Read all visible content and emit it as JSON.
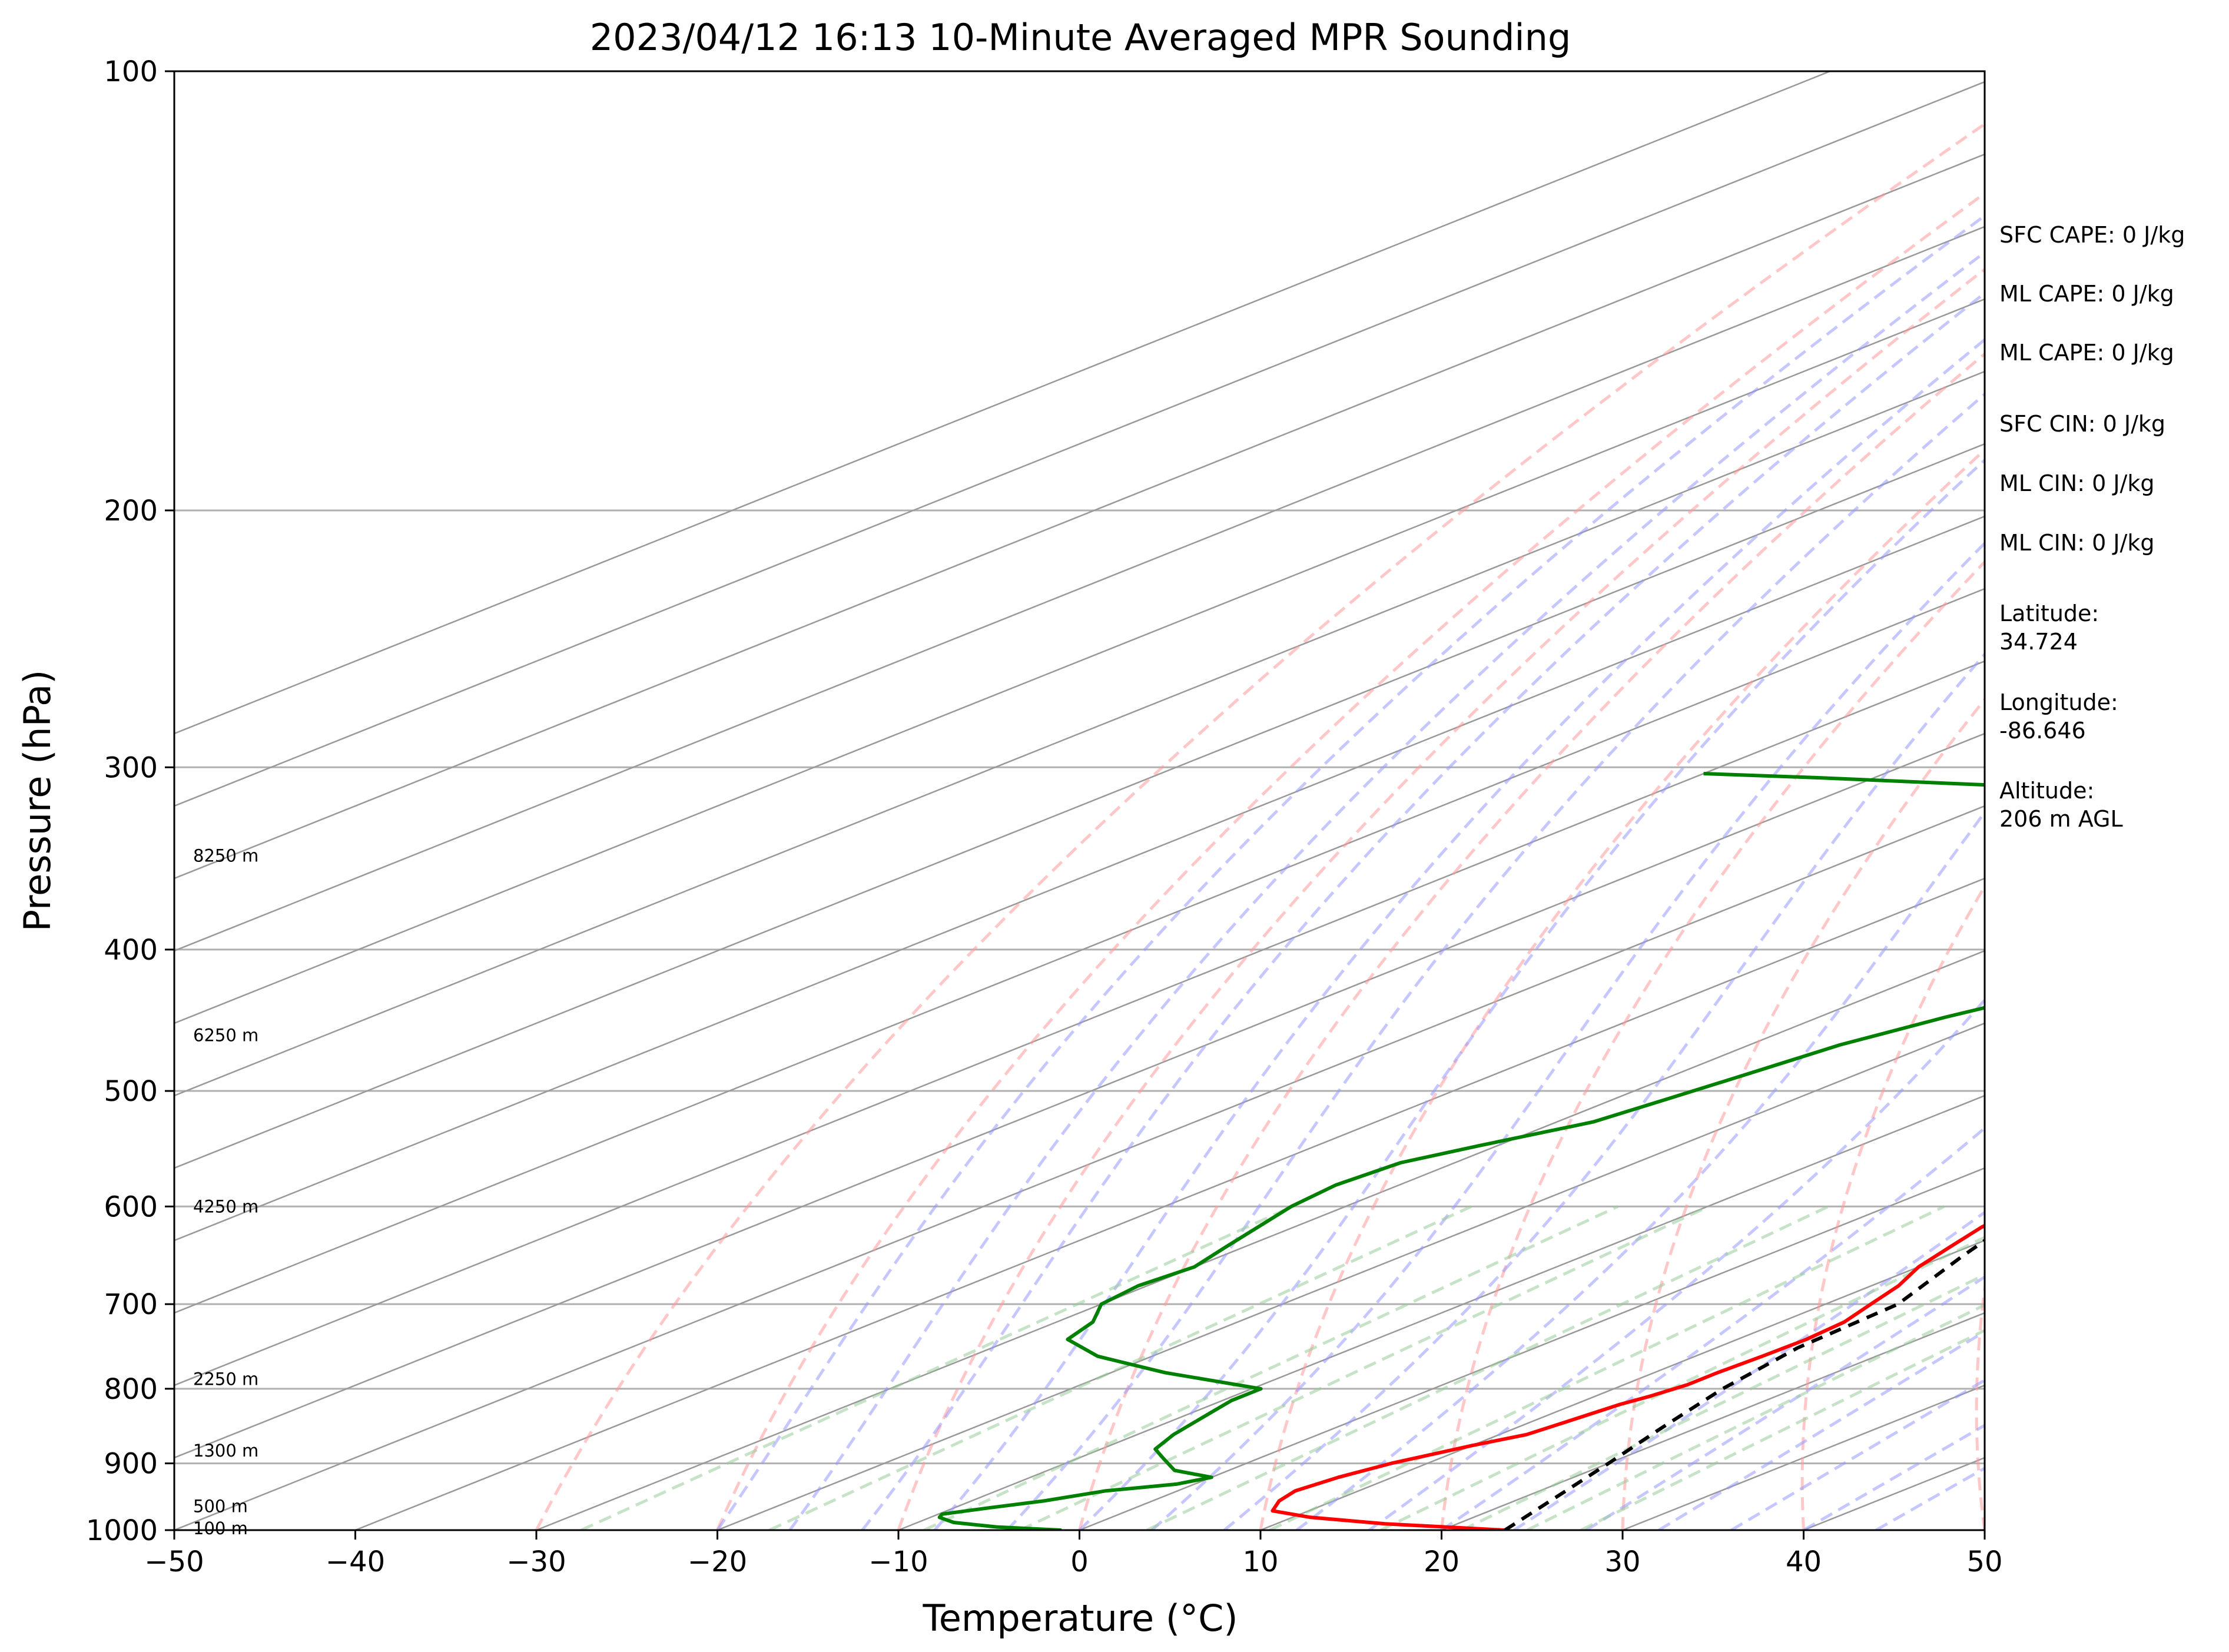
{
  "chart_data": {
    "type": "line",
    "title": "2023/04/12 16:13 10-Minute Averaged MPR Sounding",
    "xlabel": "Temperature (°C)",
    "ylabel": "Pressure (hPa)",
    "xlim": [
      -50,
      50
    ],
    "ylim": [
      1000,
      100
    ],
    "y_scale": "log",
    "skew": "skew-T",
    "grid": true,
    "x_ticks": [
      "−50",
      "−40",
      "−30",
      "−20",
      "−10",
      "0",
      "10",
      "20",
      "30",
      "40",
      "50"
    ],
    "y_ticks": [
      "100",
      "200",
      "300",
      "400",
      "500",
      "600",
      "700",
      "800",
      "900",
      "1000"
    ],
    "series": [
      {
        "role": "temperature",
        "color": "#ff0000",
        "points": [
          [
            1000,
            23.5
          ],
          [
            990,
            16
          ],
          [
            980,
            11
          ],
          [
            970,
            8
          ],
          [
            955,
            7
          ],
          [
            940,
            6.5
          ],
          [
            920,
            7
          ],
          [
            900,
            8
          ],
          [
            875,
            10
          ],
          [
            860,
            11.5
          ],
          [
            840,
            12
          ],
          [
            820,
            12.5
          ],
          [
            810,
            13
          ],
          [
            795,
            13.5
          ],
          [
            780,
            13.5
          ],
          [
            760,
            13.7
          ],
          [
            740,
            13.8
          ],
          [
            720,
            13.5
          ],
          [
            700,
            12.5
          ],
          [
            680,
            11.5
          ],
          [
            660,
            10
          ],
          [
            640,
            9
          ],
          [
            620,
            8
          ],
          [
            600,
            7.5
          ],
          [
            590,
            7
          ],
          [
            575,
            6
          ],
          [
            560,
            5.5
          ],
          [
            540,
            4
          ],
          [
            520,
            3
          ],
          [
            500,
            2
          ],
          [
            480,
            1
          ],
          [
            460,
            0.5
          ],
          [
            440,
            -1
          ],
          [
            420,
            -2.5
          ],
          [
            400,
            -3.5
          ],
          [
            385,
            -4
          ],
          [
            370,
            -4.8
          ],
          [
            355,
            -5.2
          ],
          [
            335,
            -6
          ],
          [
            320,
            -6.8
          ],
          [
            300,
            -7.5
          ],
          [
            285,
            -8.5
          ],
          [
            270,
            -9
          ]
        ]
      },
      {
        "role": "dewpoint",
        "color": "#008000",
        "points": [
          [
            1000,
            -1
          ],
          [
            995,
            -5
          ],
          [
            988,
            -8
          ],
          [
            980,
            -9.5
          ],
          [
            975,
            -9.8
          ],
          [
            965,
            -8
          ],
          [
            955,
            -6
          ],
          [
            940,
            -4
          ],
          [
            930,
            -1
          ],
          [
            920,
            0
          ],
          [
            910,
            -3
          ],
          [
            895,
            -5
          ],
          [
            880,
            -7
          ],
          [
            860,
            -8
          ],
          [
            830,
            -9
          ],
          [
            815,
            -9.5
          ],
          [
            800,
            -9.5
          ],
          [
            780,
            -17
          ],
          [
            760,
            -23
          ],
          [
            740,
            -27
          ],
          [
            720,
            -28
          ],
          [
            700,
            -30
          ],
          [
            680,
            -30.5
          ],
          [
            660,
            -30
          ],
          [
            640,
            -31
          ],
          [
            600,
            -33
          ],
          [
            580,
            -33.5
          ],
          [
            560,
            -33
          ],
          [
            545,
            -31
          ],
          [
            525,
            -28
          ],
          [
            505,
            -27
          ],
          [
            485,
            -26
          ],
          [
            465,
            -25
          ],
          [
            445,
            -23
          ],
          [
            430,
            -21
          ],
          [
            415,
            -20
          ],
          [
            400,
            -20
          ],
          [
            385,
            -24
          ],
          [
            370,
            -24
          ],
          [
            360,
            -26.5
          ],
          [
            350,
            -27
          ],
          [
            340,
            -27.5
          ],
          [
            330,
            -29
          ],
          [
            320,
            -33
          ],
          [
            315,
            -34
          ],
          [
            305,
            -63
          ],
          [
            303,
            -70
          ]
        ]
      },
      {
        "role": "parcel",
        "color": "#000000",
        "dashed": true,
        "points": [
          [
            1000,
            23.5
          ],
          [
            950,
            21.8
          ],
          [
            900,
            20
          ],
          [
            850,
            18
          ],
          [
            800,
            16
          ],
          [
            750,
            14.5
          ],
          [
            700,
            14
          ],
          [
            650,
            11
          ],
          [
            600,
            8
          ],
          [
            550,
            5
          ],
          [
            500,
            2.5
          ],
          [
            450,
            -2
          ],
          [
            400,
            -5
          ],
          [
            350,
            -10
          ],
          [
            300,
            -17
          ],
          [
            275,
            -22
          ]
        ]
      }
    ],
    "height_labels": [
      {
        "label": "8250 m",
        "p": 345
      },
      {
        "label": "6250 m",
        "p": 458
      },
      {
        "label": "4250 m",
        "p": 600
      },
      {
        "label": "2250 m",
        "p": 788
      },
      {
        "label": "1300 m",
        "p": 882
      },
      {
        "label": "500 m",
        "p": 963
      },
      {
        "label": "100 m",
        "p": 997
      }
    ],
    "info_lines": [
      [
        "SFC CAPE: 0 J/kg"
      ],
      [
        "ML CAPE: 0 J/kg"
      ],
      [
        "ML CAPE: 0 J/kg"
      ],
      [
        "SFC CIN: 0 J/kg"
      ],
      [
        "ML CIN: 0 J/kg"
      ],
      [
        "ML CIN: 0 J/kg"
      ],
      [
        "Latitude:",
        "34.724"
      ],
      [
        "Longitude:",
        "-86.646"
      ],
      [
        "Altitude:",
        "206 m AGL"
      ]
    ],
    "reference_lines": {
      "dry_adiabats_color": "#ff9999",
      "moist_adiabats_color": "#9999ff",
      "mixing_ratio_color": "#99cc99",
      "isotherm_color": "#999999"
    }
  }
}
